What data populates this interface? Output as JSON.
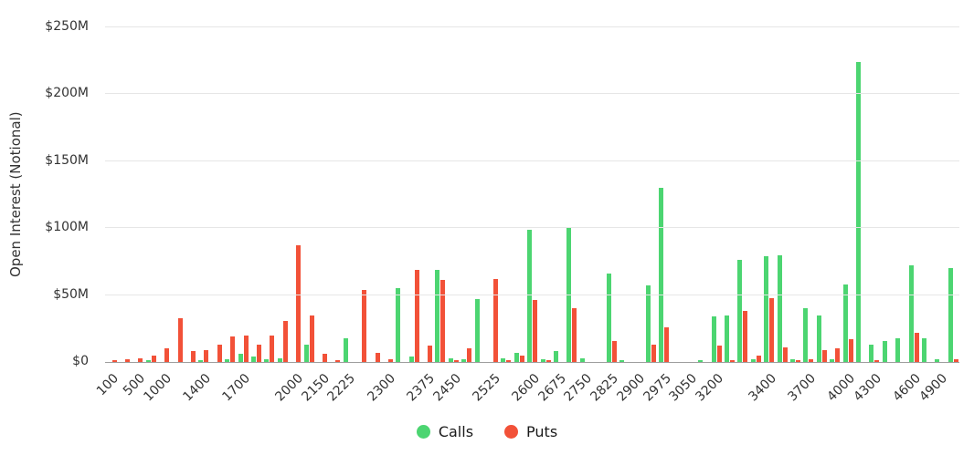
{
  "chart_data": {
    "type": "bar",
    "title": "",
    "ylabel": "Open Interest (Notional)",
    "xlabel": "",
    "unit": "USD millions",
    "ymax": 250,
    "grid": "horizontal",
    "legend_position": "bottom-center",
    "yticks": [
      {
        "value": 0,
        "label": "$0"
      },
      {
        "value": 50,
        "label": "$50M"
      },
      {
        "value": 100,
        "label": "$100M"
      },
      {
        "value": 150,
        "label": "$150M"
      },
      {
        "value": 200,
        "label": "$200M"
      },
      {
        "value": 250,
        "label": "$250M"
      }
    ],
    "legend": [
      {
        "name": "Calls",
        "color": "#4cd571"
      },
      {
        "name": "Puts",
        "color": "#f25138"
      }
    ],
    "groups": [
      {
        "strike": "100",
        "calls": 0,
        "puts": 1
      },
      {
        "strike": "",
        "calls": 0,
        "puts": 2
      },
      {
        "strike": "500",
        "calls": 0,
        "puts": 3
      },
      {
        "strike": "",
        "calls": 1,
        "puts": 5
      },
      {
        "strike": "1000",
        "calls": 0,
        "puts": 10
      },
      {
        "strike": "",
        "calls": 0,
        "puts": 33
      },
      {
        "strike": "",
        "calls": 0,
        "puts": 8
      },
      {
        "strike": "1400",
        "calls": 1,
        "puts": 9
      },
      {
        "strike": "",
        "calls": 0,
        "puts": 13
      },
      {
        "strike": "",
        "calls": 2,
        "puts": 19
      },
      {
        "strike": "1700",
        "calls": 6,
        "puts": 20
      },
      {
        "strike": "",
        "calls": 4,
        "puts": 13
      },
      {
        "strike": "",
        "calls": 2,
        "puts": 20
      },
      {
        "strike": "",
        "calls": 3,
        "puts": 31
      },
      {
        "strike": "2000",
        "calls": 0,
        "puts": 87
      },
      {
        "strike": "",
        "calls": 13,
        "puts": 35
      },
      {
        "strike": "2150",
        "calls": 0,
        "puts": 6
      },
      {
        "strike": "",
        "calls": 0,
        "puts": 1
      },
      {
        "strike": "2225",
        "calls": 18,
        "puts": 0
      },
      {
        "strike": "",
        "calls": 0,
        "puts": 54
      },
      {
        "strike": "",
        "calls": 0,
        "puts": 7
      },
      {
        "strike": "2300",
        "calls": 0,
        "puts": 2
      },
      {
        "strike": "",
        "calls": 55,
        "puts": 0
      },
      {
        "strike": "",
        "calls": 4,
        "puts": 69
      },
      {
        "strike": "2375",
        "calls": 0,
        "puts": 12
      },
      {
        "strike": "",
        "calls": 69,
        "puts": 61
      },
      {
        "strike": "2450",
        "calls": 3,
        "puts": 1
      },
      {
        "strike": "",
        "calls": 2,
        "puts": 10
      },
      {
        "strike": "",
        "calls": 47,
        "puts": 0
      },
      {
        "strike": "2525",
        "calls": 0,
        "puts": 62
      },
      {
        "strike": "",
        "calls": 3,
        "puts": 1
      },
      {
        "strike": "",
        "calls": 7,
        "puts": 5
      },
      {
        "strike": "2600",
        "calls": 99,
        "puts": 46
      },
      {
        "strike": "",
        "calls": 2,
        "puts": 1
      },
      {
        "strike": "2675",
        "calls": 8,
        "puts": 0
      },
      {
        "strike": "",
        "calls": 100,
        "puts": 40
      },
      {
        "strike": "2750",
        "calls": 3,
        "puts": 0
      },
      {
        "strike": "",
        "calls": 0,
        "puts": 0
      },
      {
        "strike": "2825",
        "calls": 66,
        "puts": 16
      },
      {
        "strike": "",
        "calls": 1,
        "puts": 0
      },
      {
        "strike": "2900",
        "calls": 0,
        "puts": 0
      },
      {
        "strike": "",
        "calls": 57,
        "puts": 13
      },
      {
        "strike": "2975",
        "calls": 130,
        "puts": 26
      },
      {
        "strike": "",
        "calls": 0,
        "puts": 0
      },
      {
        "strike": "3050",
        "calls": 0,
        "puts": 0
      },
      {
        "strike": "",
        "calls": 1,
        "puts": 0
      },
      {
        "strike": "3200",
        "calls": 34,
        "puts": 12
      },
      {
        "strike": "",
        "calls": 35,
        "puts": 1
      },
      {
        "strike": "",
        "calls": 76,
        "puts": 38
      },
      {
        "strike": "",
        "calls": 2,
        "puts": 5
      },
      {
        "strike": "3400",
        "calls": 79,
        "puts": 48
      },
      {
        "strike": "",
        "calls": 80,
        "puts": 11
      },
      {
        "strike": "",
        "calls": 2,
        "puts": 1
      },
      {
        "strike": "3700",
        "calls": 40,
        "puts": 2
      },
      {
        "strike": "",
        "calls": 35,
        "puts": 9
      },
      {
        "strike": "",
        "calls": 2,
        "puts": 10
      },
      {
        "strike": "4000",
        "calls": 58,
        "puts": 17
      },
      {
        "strike": "",
        "calls": 224,
        "puts": 0
      },
      {
        "strike": "4300",
        "calls": 13,
        "puts": 1
      },
      {
        "strike": "",
        "calls": 16,
        "puts": 0
      },
      {
        "strike": "",
        "calls": 18,
        "puts": 0
      },
      {
        "strike": "4600",
        "calls": 72,
        "puts": 22
      },
      {
        "strike": "",
        "calls": 18,
        "puts": 0
      },
      {
        "strike": "4900",
        "calls": 2,
        "puts": 0
      },
      {
        "strike": "",
        "calls": 70,
        "puts": 2
      }
    ]
  }
}
